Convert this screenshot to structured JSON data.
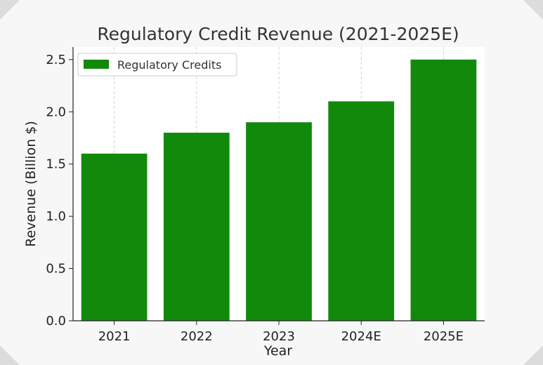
{
  "chart_data": {
    "type": "bar",
    "title": "Regulatory Credit Revenue (2021-2025E)",
    "xlabel": "Year",
    "ylabel": "Revenue (Billion $)",
    "categories": [
      "2021",
      "2022",
      "2023",
      "2024E",
      "2025E"
    ],
    "series": [
      {
        "name": "Regulatory Credits",
        "values": [
          1.6,
          1.8,
          1.9,
          2.1,
          2.5
        ]
      }
    ],
    "ylim": [
      0,
      2.62
    ],
    "yticks": [
      "0.0",
      "0.5",
      "1.0",
      "1.5",
      "2.0",
      "2.5"
    ],
    "grid": "x-dashed",
    "legend_position": "top-left",
    "bar_color": "#118a0c",
    "background": "#f7f7f7",
    "plot_background": "#ffffff"
  }
}
